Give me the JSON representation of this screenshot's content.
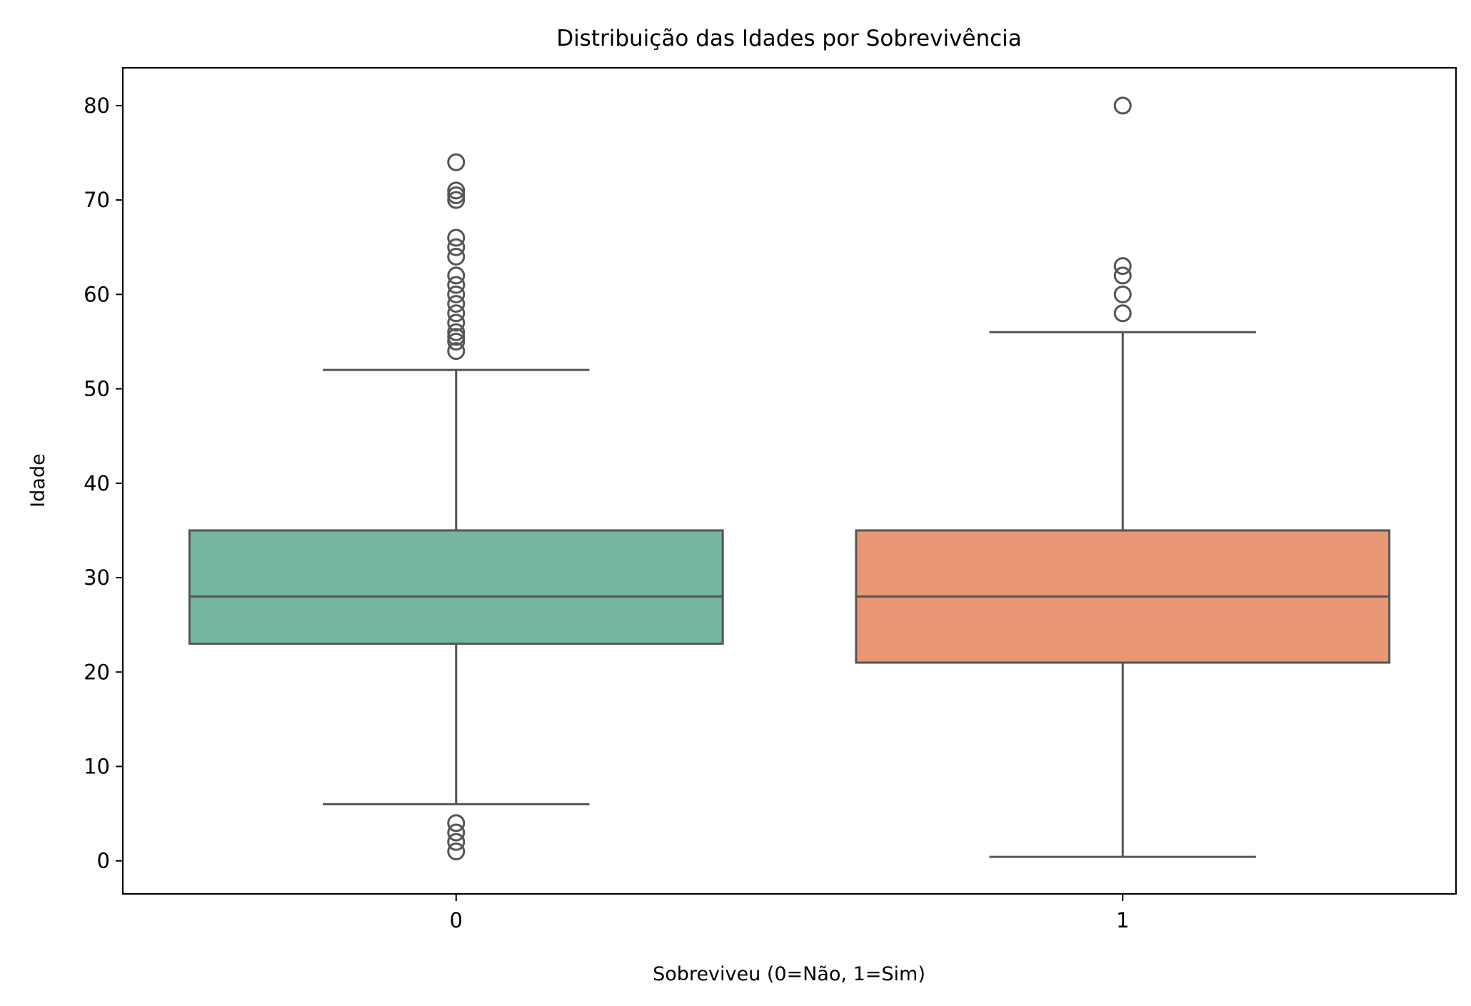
{
  "chart_data": {
    "type": "box",
    "title": "Distribuição das Idades por Sobrevivência",
    "xlabel": "Sobreviveu (0=Não, 1=Sim)",
    "ylabel": "Idade",
    "ylim": [
      -3.5,
      84
    ],
    "yticks": [
      0,
      10,
      20,
      30,
      40,
      50,
      60,
      70,
      80
    ],
    "grid": false,
    "legend": "none",
    "categories": [
      "0",
      "1"
    ],
    "series": [
      {
        "category": "0",
        "color": "#74b6a1",
        "whisker_low": 6,
        "q1": 23,
        "median": 28,
        "q3": 35,
        "whisker_high": 52,
        "outliers": [
          74,
          71,
          70.5,
          70,
          66,
          65,
          64,
          62,
          61,
          60,
          59,
          58,
          57,
          56,
          55.5,
          55,
          54,
          4,
          3,
          2,
          1
        ]
      },
      {
        "category": "1",
        "color": "#e99675",
        "whisker_low": 0.42,
        "q1": 21,
        "median": 28,
        "q3": 35,
        "whisker_high": 56,
        "outliers": [
          80,
          63,
          62,
          60,
          58
        ]
      }
    ]
  }
}
